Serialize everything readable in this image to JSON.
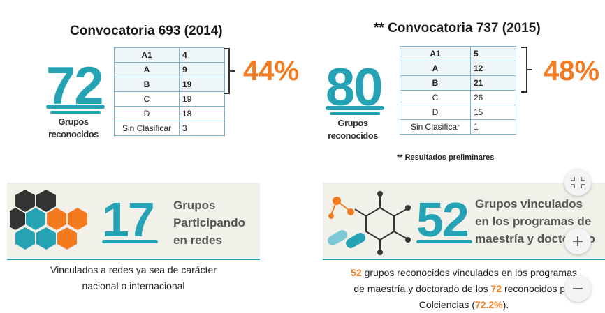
{
  "left": {
    "title": "Convocatoria 693 (2014)",
    "total": "72",
    "total_label": [
      "Grupos",
      "reconocidos"
    ],
    "table": {
      "rows": [
        [
          "A1",
          4
        ],
        [
          "A",
          9
        ],
        [
          "B",
          19
        ],
        [
          "C",
          19
        ],
        [
          "D",
          18
        ],
        [
          "Sin Clasificar",
          3
        ]
      ]
    },
    "percent": "44%"
  },
  "right": {
    "title": "** Convocatoria 737 (2015)",
    "total": "80",
    "total_label": [
      "Grupos",
      "reconocidos"
    ],
    "table": {
      "rows": [
        [
          "A1",
          5
        ],
        [
          "A",
          12
        ],
        [
          "B",
          21
        ],
        [
          "C",
          26
        ],
        [
          "D",
          15
        ],
        [
          "Sin Clasificar",
          1
        ]
      ]
    },
    "percent": "48%",
    "note": "** Resultados preliminares"
  },
  "cards": [
    {
      "number": "17",
      "text": [
        "Grupos",
        "Participando",
        "en redes"
      ],
      "caption": [
        [
          "Vinculados a redes ya sea de carácter"
        ],
        [
          "nacional o internacional"
        ]
      ]
    },
    {
      "number": "52",
      "text": [
        "Grupos vinculados",
        "en los programas de",
        "maestría y doctorado"
      ],
      "caption": [
        [
          "52",
          " grupos reconocidos vinculados en los programas"
        ],
        [
          "de maestría y doctorado de los ",
          "72",
          " reconocidos por"
        ],
        [
          "Colciencias (",
          "72.2%",
          ")."
        ]
      ]
    }
  ]
}
